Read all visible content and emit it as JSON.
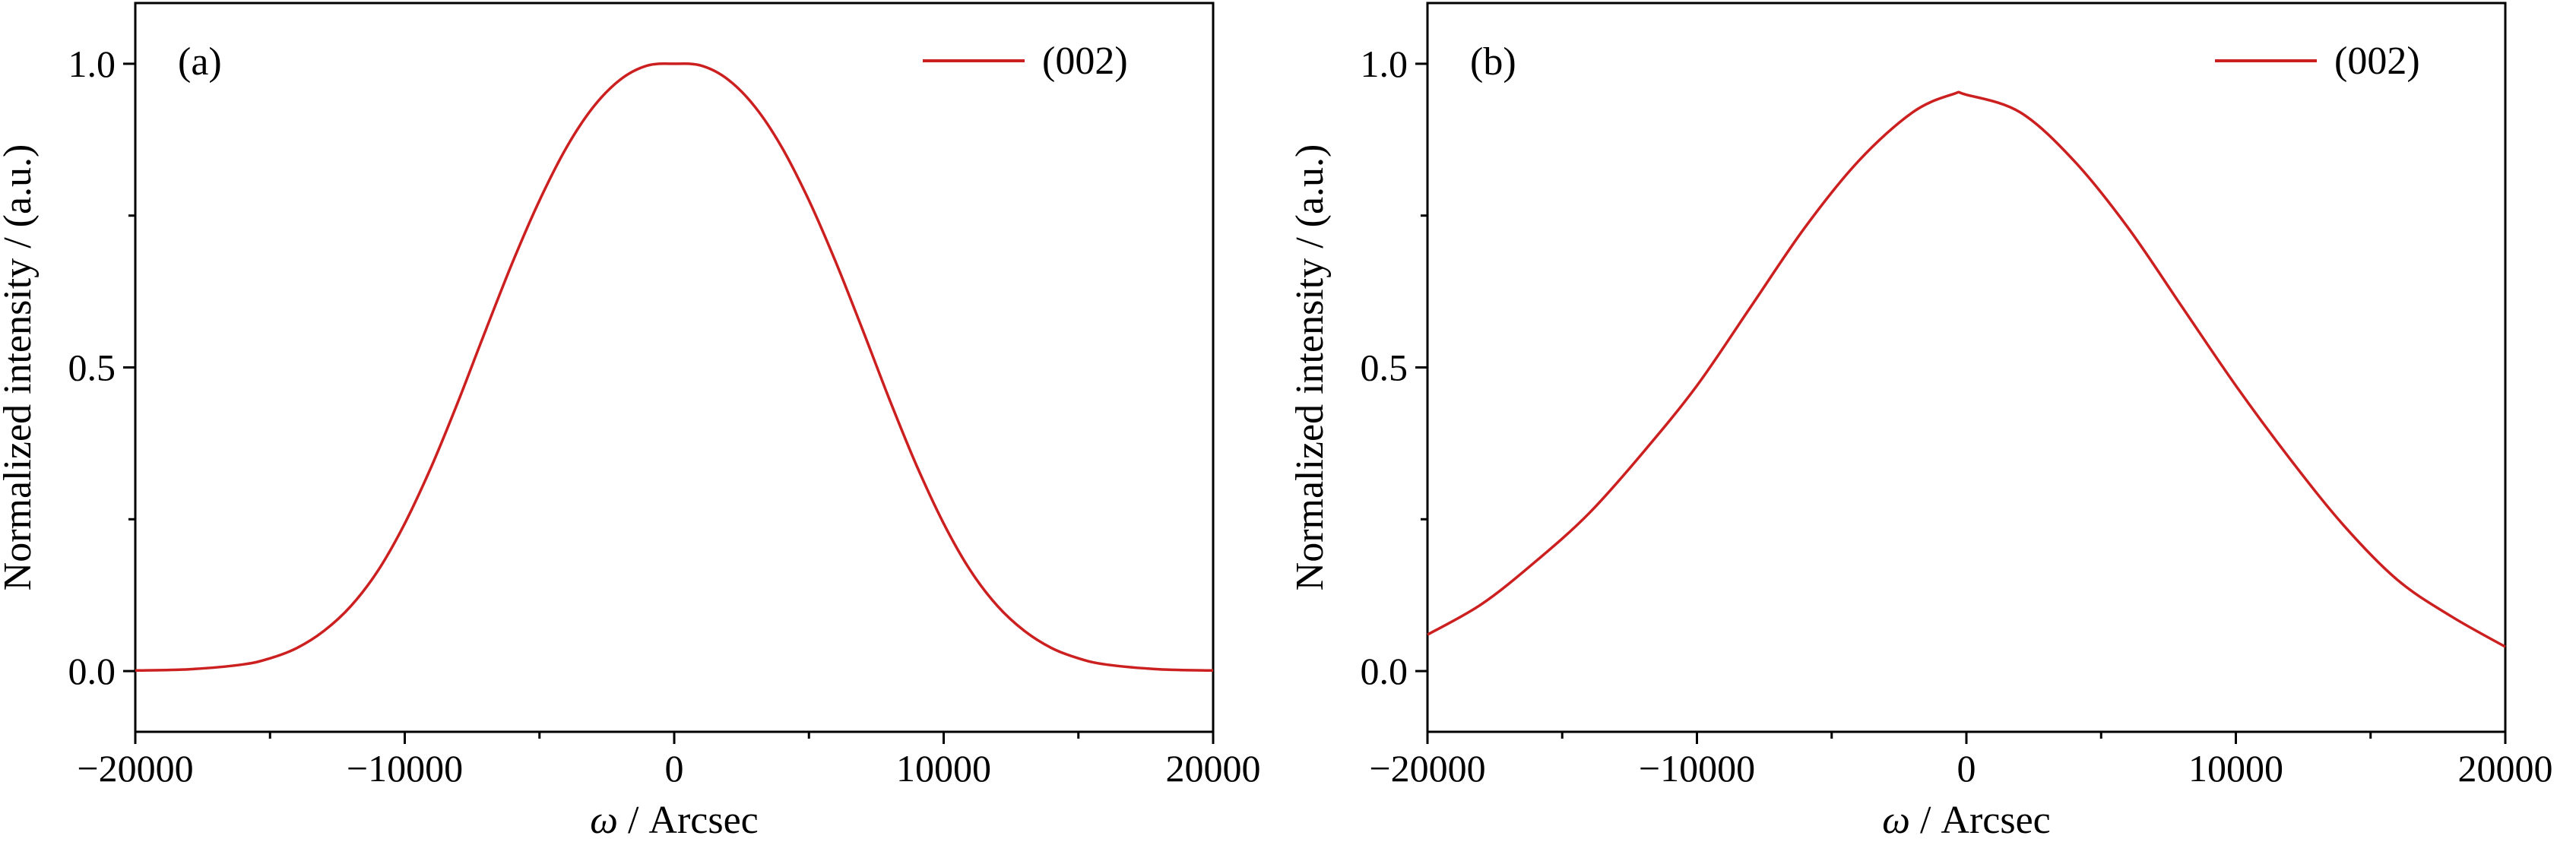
{
  "figure": {
    "panels": [
      {
        "label": "(a)",
        "legend": "(002)",
        "xlabel_symbol": "ω",
        "xlabel_rest": " / Arcsec",
        "ylabel": "Normalized intensity / (a.u.)",
        "xticks": [
          "−20000",
          "−10000",
          "0",
          "10000",
          "20000"
        ],
        "yticks": [
          "0.0",
          "0.5",
          "1.0"
        ]
      },
      {
        "label": "(b)",
        "legend": "(002)",
        "xlabel_symbol": "ω",
        "xlabel_rest": " / Arcsec",
        "ylabel": "Normalized intensity / (a.u.)",
        "xticks": [
          "−20000",
          "−10000",
          "0",
          "10000",
          "20000"
        ],
        "yticks": [
          "0.0",
          "0.5",
          "1.0"
        ]
      }
    ]
  },
  "chart_data": [
    {
      "type": "line",
      "title": "",
      "panel": "(a)",
      "xlabel": "ω / Arcsec",
      "ylabel": "Normalized intensity / (a.u.)",
      "xlim": [
        -20000,
        20000
      ],
      "ylim": [
        -0.1,
        1.1
      ],
      "xticks": [
        -20000,
        -10000,
        0,
        10000,
        20000
      ],
      "yticks": [
        0.0,
        0.5,
        1.0
      ],
      "grid": false,
      "legend_position": "top-right",
      "series": [
        {
          "name": "(002)",
          "color": "#cc1f1f",
          "x": [
            -20000,
            -18000,
            -16000,
            -15000,
            -14000,
            -13000,
            -12000,
            -11000,
            -10000,
            -9000,
            -8000,
            -7000,
            -6000,
            -5000,
            -4000,
            -3000,
            -2000,
            -1000,
            0,
            1000,
            2000,
            3000,
            4000,
            5000,
            6000,
            7000,
            8000,
            9000,
            10000,
            11000,
            12000,
            13000,
            14000,
            15000,
            16000,
            18000,
            20000
          ],
          "y": [
            0.001,
            0.003,
            0.011,
            0.021,
            0.038,
            0.066,
            0.107,
            0.165,
            0.243,
            0.338,
            0.446,
            0.561,
            0.673,
            0.775,
            0.862,
            0.929,
            0.974,
            0.997,
            1.0,
            0.997,
            0.974,
            0.929,
            0.862,
            0.775,
            0.673,
            0.561,
            0.446,
            0.338,
            0.243,
            0.165,
            0.107,
            0.066,
            0.038,
            0.021,
            0.011,
            0.003,
            0.001
          ]
        }
      ]
    },
    {
      "type": "line",
      "title": "",
      "panel": "(b)",
      "xlabel": "ω / Arcsec",
      "ylabel": "Normalized intensity / (a.u.)",
      "xlim": [
        -20000,
        20000
      ],
      "ylim": [
        -0.1,
        1.1
      ],
      "xticks": [
        -20000,
        -10000,
        0,
        10000,
        20000
      ],
      "yticks": [
        0.0,
        0.5,
        1.0
      ],
      "grid": false,
      "legend_position": "top-right",
      "series": [
        {
          "name": "(002)",
          "color": "#cc1f1f",
          "x": [
            -20000,
            -18000,
            -16000,
            -14000,
            -12000,
            -10000,
            -8000,
            -6000,
            -4000,
            -2000,
            -500,
            0,
            2000,
            4000,
            6000,
            8000,
            10000,
            12000,
            14000,
            16000,
            18000,
            20000
          ],
          "y": [
            0.06,
            0.11,
            0.18,
            0.26,
            0.36,
            0.47,
            0.6,
            0.73,
            0.84,
            0.92,
            0.95,
            0.949,
            0.92,
            0.84,
            0.73,
            0.6,
            0.47,
            0.35,
            0.24,
            0.15,
            0.09,
            0.04
          ]
        }
      ]
    }
  ]
}
